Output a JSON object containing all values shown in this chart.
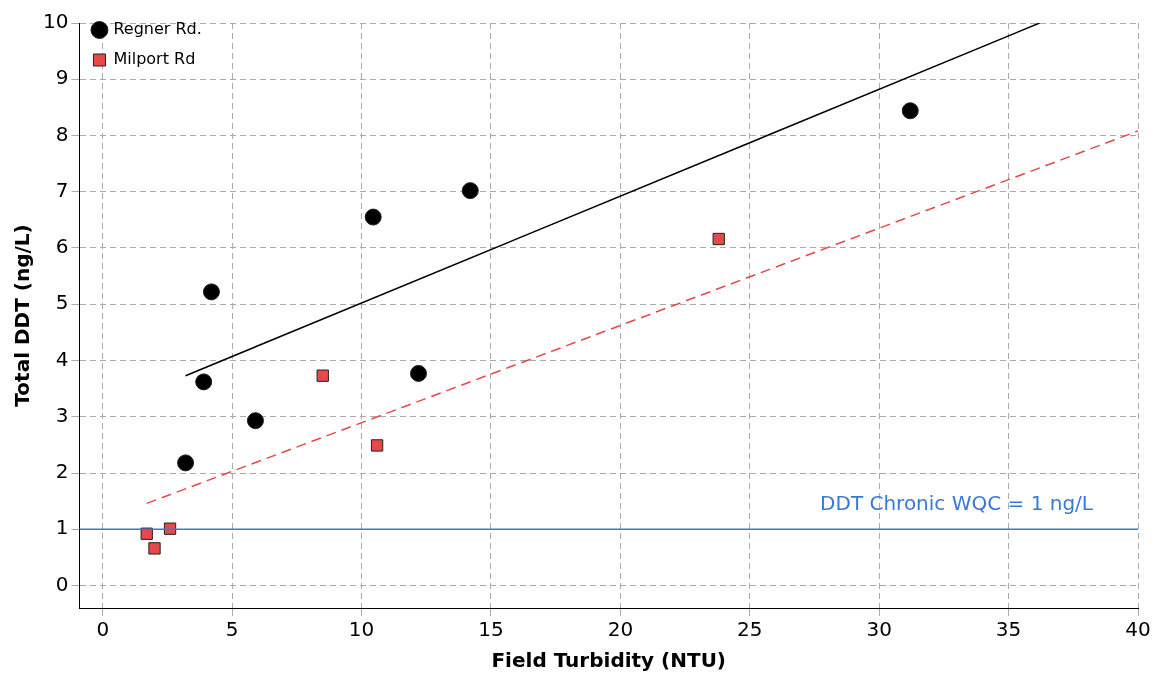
{
  "chart_data": {
    "type": "scatter",
    "xlabel": "Field Turbidity (NTU)",
    "ylabel": "Total DDT (ng/L)",
    "xlim": [
      -0.9,
      40
    ],
    "xticks": [
      0,
      5,
      10,
      15,
      20,
      25,
      30,
      35,
      40
    ],
    "ylim": [
      -0.4,
      10
    ],
    "yticks": [
      0,
      1,
      2,
      3,
      4,
      5,
      6,
      7,
      8,
      9,
      10
    ],
    "grid": true,
    "legend": "top left",
    "series": [
      {
        "name": "Regner Rd.",
        "marker": "circle",
        "color": "#000000",
        "x": [
          3.2,
          3.9,
          4.2,
          5.9,
          10.45,
          12.2,
          14.2,
          31.2
        ],
        "values": [
          2.18,
          3.62,
          5.22,
          2.93,
          6.55,
          3.77,
          7.02,
          8.44
        ]
      },
      {
        "name": "Milport Rd",
        "marker": "square",
        "color": "#e8474c",
        "x": [
          1.7,
          2.0,
          2.6,
          8.5,
          10.6,
          23.8
        ],
        "values": [
          0.92,
          0.66,
          1.01,
          3.73,
          2.49,
          6.16
        ]
      },
      {
        "type": "line",
        "marker": "none",
        "line_style": "solid",
        "color": "#000000",
        "x": [
          3.2,
          36.2
        ],
        "values": [
          3.73,
          10
        ]
      },
      {
        "type": "line",
        "marker": "none",
        "line_style": "dashed",
        "color": "#e8474c",
        "x": [
          1.7,
          40
        ],
        "values": [
          1.46,
          8.08
        ]
      }
    ],
    "ref_lines": [
      {
        "axis": "y",
        "value": 1,
        "label": "DDT Chronic WQC = 1 ng/L",
        "color": "#3a78d6"
      }
    ]
  }
}
